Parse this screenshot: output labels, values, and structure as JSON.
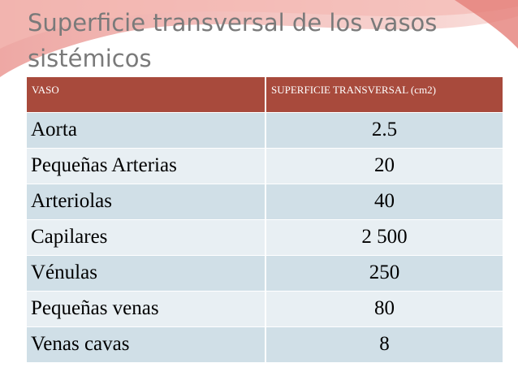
{
  "title": "Superficie transversal de los vasos sistémicos",
  "table": {
    "header": [
      "VASO",
      "SUPERFICIE TRANSVERSAL (cm2)"
    ],
    "rows": [
      [
        "Aorta",
        "2.5"
      ],
      [
        "Pequeñas Arterias",
        "20"
      ],
      [
        "Arteriolas",
        "40"
      ],
      [
        "Capilares",
        "2 500"
      ],
      [
        "Vénulas",
        "250"
      ],
      [
        "Pequeñas venas",
        "80"
      ],
      [
        "Venas cavas",
        "8"
      ]
    ]
  }
}
